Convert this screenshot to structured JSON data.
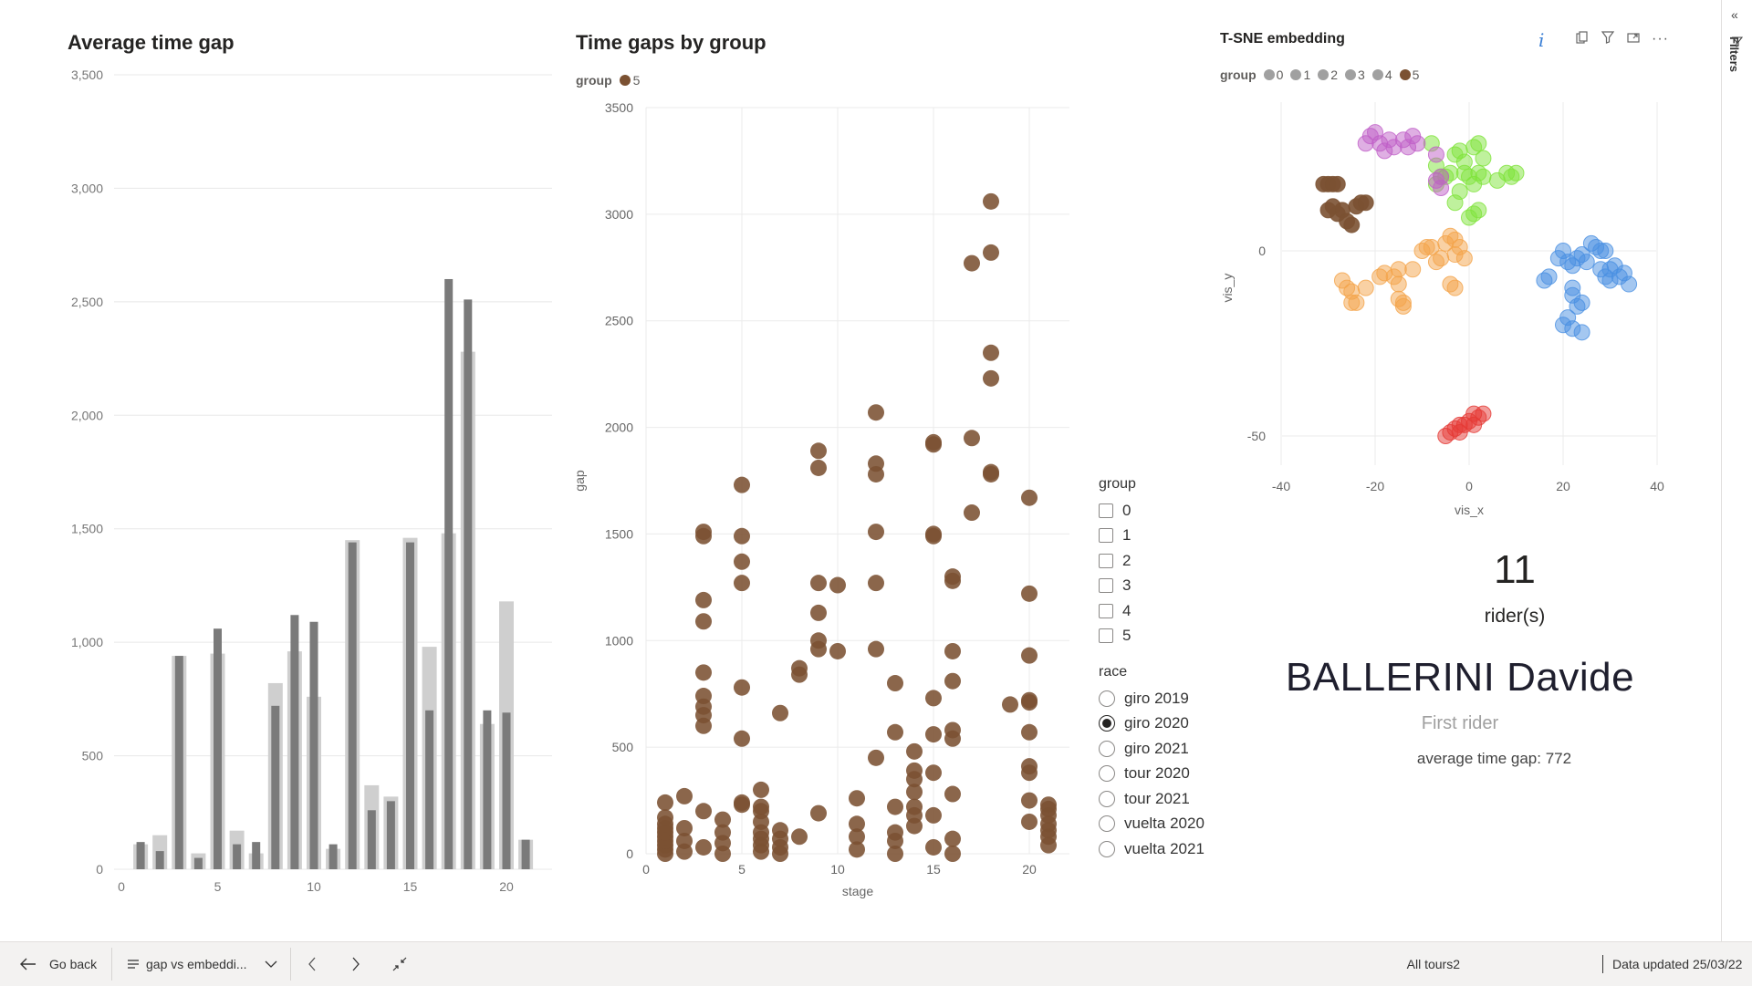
{
  "colors": {
    "bar_dark": "#7a7a7a",
    "bar_light": "#cfcfcf",
    "group5": "#7b5132",
    "tsne": [
      "#a0a0a0",
      "#4a90e2",
      "#7fe33b",
      "#f4a44a",
      "#c060c8",
      "#7b5132",
      "#e53935"
    ]
  },
  "avg_chart": {
    "title": "Average time gap",
    "yticks": [
      "0",
      "500",
      "1,000",
      "1,500",
      "2,000",
      "2,500",
      "3,000",
      "3,500"
    ],
    "xticks": [
      "0",
      "5",
      "10",
      "15",
      "20"
    ],
    "chart_data": {
      "type": "bar",
      "categories": [
        1,
        2,
        3,
        4,
        5,
        6,
        7,
        8,
        9,
        10,
        11,
        12,
        13,
        14,
        15,
        16,
        17,
        18,
        19,
        20,
        21
      ],
      "ylim": [
        0,
        3500
      ],
      "series": [
        {
          "values": [
            110,
            150,
            940,
            70,
            950,
            170,
            70,
            820,
            960,
            760,
            90,
            1450,
            370,
            320,
            1460,
            980,
            1480,
            2280,
            640,
            1180,
            130
          ]
        },
        {
          "values": [
            120,
            80,
            940,
            50,
            1060,
            110,
            120,
            720,
            1120,
            1090,
            110,
            1440,
            260,
            300,
            1440,
            700,
            2600,
            2510,
            700,
            690,
            130
          ]
        }
      ]
    }
  },
  "scatter_chart": {
    "title": "Time gaps by group",
    "legend_title": "group",
    "legend_item": "5",
    "xlabel": "stage",
    "ylabel": "gap",
    "xticks": [
      "0",
      "5",
      "10",
      "15",
      "20"
    ],
    "yticks": [
      "0",
      "500",
      "1000",
      "1500",
      "2000",
      "2500",
      "3000",
      "3500"
    ],
    "chart_data": {
      "type": "scatter",
      "xlim": [
        0,
        22
      ],
      "ylim": [
        0,
        3500
      ],
      "points": [
        [
          1,
          0
        ],
        [
          1,
          20
        ],
        [
          1,
          40
        ],
        [
          1,
          60
        ],
        [
          1,
          80
        ],
        [
          1,
          100
        ],
        [
          1,
          120
        ],
        [
          1,
          140
        ],
        [
          1,
          170
        ],
        [
          1,
          240
        ],
        [
          2,
          10
        ],
        [
          2,
          60
        ],
        [
          2,
          120
        ],
        [
          2,
          270
        ],
        [
          3,
          30
        ],
        [
          3,
          200
        ],
        [
          3,
          600
        ],
        [
          3,
          650
        ],
        [
          3,
          690
        ],
        [
          3,
          740
        ],
        [
          3,
          850
        ],
        [
          3,
          1090
        ],
        [
          3,
          1190
        ],
        [
          3,
          1490
        ],
        [
          3,
          1510
        ],
        [
          4,
          0
        ],
        [
          4,
          50
        ],
        [
          4,
          100
        ],
        [
          4,
          160
        ],
        [
          5,
          230
        ],
        [
          5,
          240
        ],
        [
          5,
          540
        ],
        [
          5,
          780
        ],
        [
          5,
          1270
        ],
        [
          5,
          1370
        ],
        [
          5,
          1490
        ],
        [
          5,
          1730
        ],
        [
          6,
          10
        ],
        [
          6,
          40
        ],
        [
          6,
          70
        ],
        [
          6,
          100
        ],
        [
          6,
          150
        ],
        [
          6,
          200
        ],
        [
          6,
          220
        ],
        [
          6,
          300
        ],
        [
          7,
          0
        ],
        [
          7,
          30
        ],
        [
          7,
          70
        ],
        [
          7,
          110
        ],
        [
          7,
          660
        ],
        [
          8,
          80
        ],
        [
          8,
          840
        ],
        [
          8,
          870
        ],
        [
          9,
          190
        ],
        [
          9,
          960
        ],
        [
          9,
          1000
        ],
        [
          9,
          1130
        ],
        [
          9,
          1270
        ],
        [
          9,
          1810
        ],
        [
          9,
          1890
        ],
        [
          10,
          950
        ],
        [
          10,
          1260
        ],
        [
          11,
          20
        ],
        [
          11,
          80
        ],
        [
          11,
          140
        ],
        [
          11,
          260
        ],
        [
          12,
          450
        ],
        [
          12,
          960
        ],
        [
          12,
          1270
        ],
        [
          12,
          1510
        ],
        [
          12,
          1780
        ],
        [
          12,
          1830
        ],
        [
          12,
          2070
        ],
        [
          13,
          0
        ],
        [
          13,
          60
        ],
        [
          13,
          100
        ],
        [
          13,
          220
        ],
        [
          13,
          570
        ],
        [
          13,
          800
        ],
        [
          14,
          130
        ],
        [
          14,
          180
        ],
        [
          14,
          220
        ],
        [
          14,
          290
        ],
        [
          14,
          350
        ],
        [
          14,
          390
        ],
        [
          14,
          480
        ],
        [
          15,
          30
        ],
        [
          15,
          180
        ],
        [
          15,
          380
        ],
        [
          15,
          560
        ],
        [
          15,
          730
        ],
        [
          15,
          1490
        ],
        [
          15,
          1500
        ],
        [
          15,
          1920
        ],
        [
          15,
          1930
        ],
        [
          16,
          0
        ],
        [
          16,
          70
        ],
        [
          16,
          280
        ],
        [
          16,
          540
        ],
        [
          16,
          580
        ],
        [
          16,
          810
        ],
        [
          16,
          950
        ],
        [
          16,
          1280
        ],
        [
          16,
          1300
        ],
        [
          17,
          1600
        ],
        [
          17,
          1950
        ],
        [
          17,
          2770
        ],
        [
          18,
          1780
        ],
        [
          18,
          1790
        ],
        [
          18,
          2230
        ],
        [
          18,
          2350
        ],
        [
          18,
          2820
        ],
        [
          18,
          3060
        ],
        [
          19,
          700
        ],
        [
          20,
          150
        ],
        [
          20,
          250
        ],
        [
          20,
          380
        ],
        [
          20,
          410
        ],
        [
          20,
          570
        ],
        [
          20,
          710
        ],
        [
          20,
          720
        ],
        [
          20,
          930
        ],
        [
          20,
          1220
        ],
        [
          20,
          1670
        ],
        [
          21,
          40
        ],
        [
          21,
          80
        ],
        [
          21,
          110
        ],
        [
          21,
          140
        ],
        [
          21,
          180
        ],
        [
          21,
          210
        ],
        [
          21,
          230
        ]
      ]
    }
  },
  "tsne_chart": {
    "title": "T-SNE embedding",
    "legend_title": "group",
    "legend_items": [
      "0",
      "1",
      "2",
      "3",
      "4",
      "5"
    ],
    "xlabel": "vis_x",
    "ylabel": "vis_y",
    "xticks": [
      "-40",
      "-20",
      "0",
      "20",
      "40"
    ],
    "yticks": [
      "0",
      "-50"
    ],
    "chart_data": {
      "type": "scatter",
      "xlim": [
        -40,
        40
      ],
      "ylim": [
        -60,
        40
      ],
      "clusters": [
        {
          "c": 1,
          "points": [
            [
              16,
              -8
            ],
            [
              17,
              -7
            ],
            [
              19,
              -2
            ],
            [
              20,
              0
            ],
            [
              21,
              -3
            ],
            [
              22,
              -4
            ],
            [
              23,
              -2
            ],
            [
              24,
              -1
            ],
            [
              25,
              -3
            ],
            [
              26,
              2
            ],
            [
              27,
              1
            ],
            [
              28,
              0
            ],
            [
              29,
              0
            ],
            [
              28,
              -5
            ],
            [
              29,
              -7
            ],
            [
              30,
              -5
            ],
            [
              31,
              -4
            ],
            [
              32,
              -7
            ],
            [
              33,
              -6
            ],
            [
              34,
              -9
            ],
            [
              30,
              -8
            ],
            [
              22,
              -10
            ],
            [
              22,
              -12
            ],
            [
              23,
              -15
            ],
            [
              24,
              -14
            ],
            [
              21,
              -18
            ],
            [
              22,
              -21
            ],
            [
              24,
              -22
            ],
            [
              20,
              -20
            ]
          ]
        },
        {
          "c": 2,
          "points": [
            [
              -8,
              29
            ],
            [
              -7,
              23
            ],
            [
              -5,
              20
            ],
            [
              -4,
              21
            ],
            [
              -3,
              26
            ],
            [
              -2,
              27
            ],
            [
              -1,
              24
            ],
            [
              0,
              20
            ],
            [
              1,
              18
            ],
            [
              2,
              21
            ],
            [
              3,
              25
            ],
            [
              1,
              28
            ],
            [
              2,
              29
            ],
            [
              -1,
              21
            ],
            [
              3,
              20
            ],
            [
              6,
              19
            ],
            [
              8,
              21
            ],
            [
              9,
              20
            ],
            [
              10,
              21
            ],
            [
              0,
              9
            ],
            [
              1,
              10
            ],
            [
              2,
              11
            ],
            [
              -3,
              13
            ],
            [
              -2,
              16
            ],
            [
              -7,
              18
            ],
            [
              -6,
              20
            ]
          ]
        },
        {
          "c": 3,
          "points": [
            [
              -27,
              -8
            ],
            [
              -26,
              -10
            ],
            [
              -25,
              -11
            ],
            [
              -25,
              -14
            ],
            [
              -24,
              -14
            ],
            [
              -22,
              -10
            ],
            [
              -19,
              -7
            ],
            [
              -18,
              -6
            ],
            [
              -16,
              -7
            ],
            [
              -15,
              -5
            ],
            [
              -15,
              -9
            ],
            [
              -15,
              -13
            ],
            [
              -14,
              -15
            ],
            [
              -14,
              -14
            ],
            [
              -12,
              -5
            ],
            [
              -10,
              0
            ],
            [
              -9,
              1
            ],
            [
              -8,
              1
            ],
            [
              -7,
              -3
            ],
            [
              -6,
              -2
            ],
            [
              -5,
              2
            ],
            [
              -4,
              4
            ],
            [
              -3,
              3
            ],
            [
              -2,
              1
            ],
            [
              -1,
              -2
            ],
            [
              -3,
              -1
            ],
            [
              -4,
              -9
            ],
            [
              -3,
              -10
            ]
          ]
        },
        {
          "c": 4,
          "points": [
            [
              -22,
              29
            ],
            [
              -21,
              31
            ],
            [
              -20,
              32
            ],
            [
              -19,
              29
            ],
            [
              -18,
              27
            ],
            [
              -17,
              30
            ],
            [
              -16,
              28
            ],
            [
              -14,
              30
            ],
            [
              -13,
              28
            ],
            [
              -7,
              26
            ],
            [
              -7,
              19
            ],
            [
              -6,
              20
            ],
            [
              -6,
              17
            ],
            [
              -12,
              31
            ],
            [
              -11,
              29
            ]
          ]
        },
        {
          "c": 5,
          "points": [
            [
              -31,
              18
            ],
            [
              -30,
              18
            ],
            [
              -29,
              18
            ],
            [
              -28,
              18
            ],
            [
              -29,
              12
            ],
            [
              -28,
              10
            ],
            [
              -27,
              11
            ],
            [
              -26,
              8
            ],
            [
              -25,
              7
            ],
            [
              -24,
              12
            ],
            [
              -23,
              13
            ],
            [
              -22,
              13
            ],
            [
              -30,
              11
            ]
          ]
        },
        {
          "c": 6,
          "points": [
            [
              -5,
              -50
            ],
            [
              -4,
              -49
            ],
            [
              -3,
              -48
            ],
            [
              -2,
              -47
            ],
            [
              -1,
              -47
            ],
            [
              0,
              -46
            ],
            [
              1,
              -44
            ],
            [
              2,
              -45
            ],
            [
              1,
              -47
            ],
            [
              3,
              -44
            ],
            [
              -2,
              -49
            ]
          ]
        }
      ]
    }
  },
  "slicer_group": {
    "title": "group",
    "options": [
      "0",
      "1",
      "2",
      "3",
      "4",
      "5"
    ]
  },
  "slicer_race": {
    "title": "race",
    "options": [
      "giro 2019",
      "giro 2020",
      "giro 2021",
      "tour 2020",
      "tour 2021",
      "vuelta 2020",
      "vuelta 2021"
    ],
    "selected_index": 1
  },
  "card": {
    "count": "11",
    "count_label": "rider(s)",
    "first_rider": "BALLERINI Davide",
    "first_rider_label": "First rider",
    "avg_gap": "average time gap: 772"
  },
  "filters_label": "Filters",
  "statusbar": {
    "go_back": "Go back",
    "page_name": "gap vs embeddi...",
    "dataset": "All tours2",
    "updated": "Data updated 25/03/22"
  }
}
